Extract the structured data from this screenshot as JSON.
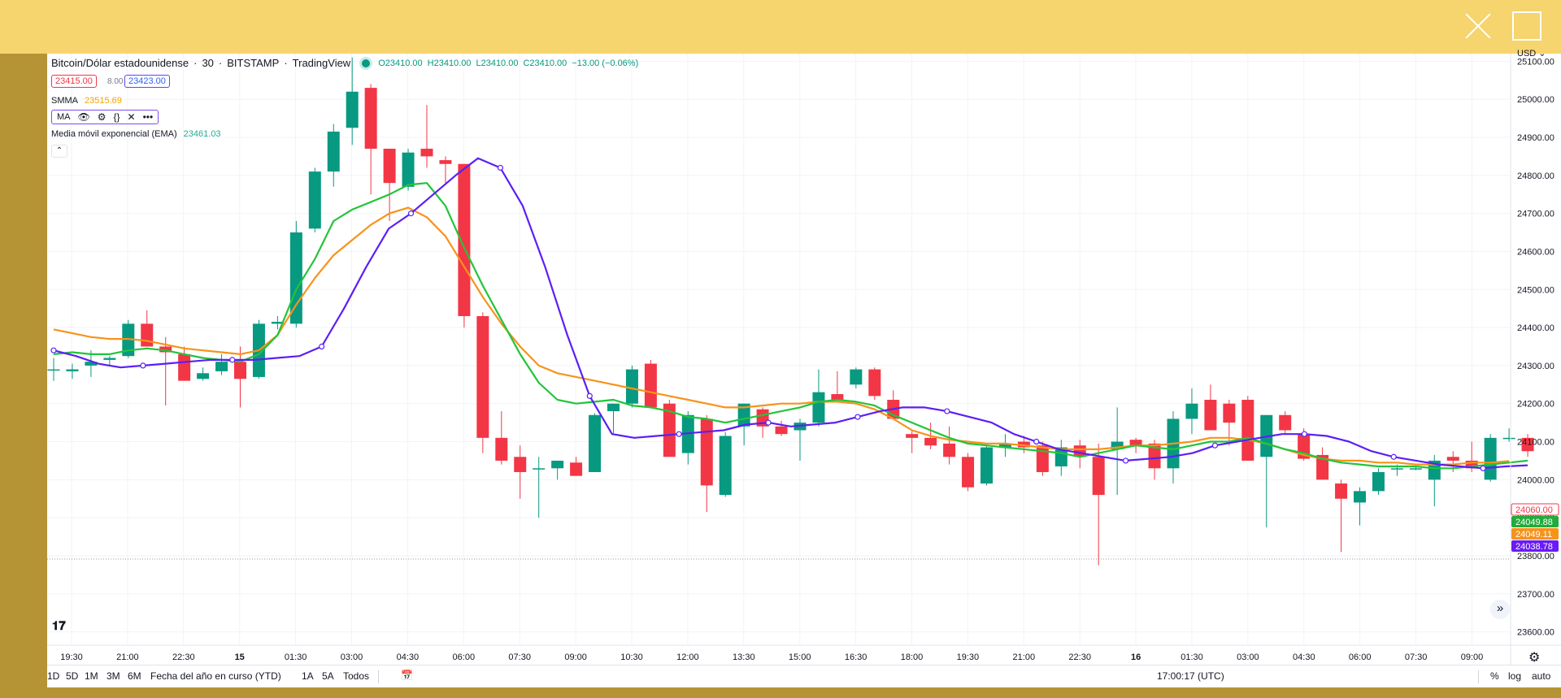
{
  "window": {
    "close_label": "close",
    "maximize_label": "maximize"
  },
  "header": {
    "symbol": "Bitcoin/Dólar estadounidense",
    "interval": "30",
    "exchange": "BITSTAMP",
    "source": "TradingView",
    "ohlc": {
      "o": "O23410.00",
      "h": "H23410.00",
      "l": "L23410.00",
      "c": "C23410.00",
      "chg": "−13.00 (−0.06%)"
    },
    "sell_price": "23415.00",
    "spread": "8.00",
    "buy_price": "23423.00"
  },
  "indicators": {
    "smma": {
      "label": "SMMA",
      "value": "23515.69"
    },
    "ma": {
      "label": "MA"
    },
    "ema": {
      "label": "Media móvil exponencial (EMA)",
      "value": "23461.03"
    }
  },
  "price_axis": {
    "currency": "USD",
    "ticks": [
      "25100.00",
      "25000.00",
      "24900.00",
      "24800.00",
      "24700.00",
      "24600.00",
      "24500.00",
      "24400.00",
      "24300.00",
      "24200.00",
      "24100.00",
      "24000.00",
      "23900.00",
      "23800.00",
      "23700.00",
      "23600.00"
    ],
    "tags": [
      {
        "text": "24060.00",
        "color": "#f23645",
        "outline": true,
        "price": 24060.0
      },
      {
        "text": "24049.88",
        "color": "#22ab3c",
        "outline": false,
        "price": 24049.88
      },
      {
        "text": "24049.11",
        "color": "#f7931a",
        "outline": false,
        "price": 24049.11
      },
      {
        "text": "24038.78",
        "color": "#6a1bf5",
        "outline": false,
        "price": 24038.78
      }
    ]
  },
  "time_axis": {
    "labels": [
      "19:30",
      "21:00",
      "22:30",
      "15",
      "01:30",
      "03:00",
      "04:30",
      "06:00",
      "07:30",
      "09:00",
      "10:30",
      "12:00",
      "13:30",
      "15:00",
      "16:30",
      "18:00",
      "19:30",
      "21:00",
      "22:30",
      "16",
      "01:30",
      "03:00",
      "04:30",
      "06:00",
      "07:30",
      "09:00"
    ]
  },
  "toolbar": {
    "ranges": [
      "1D",
      "5D",
      "1M",
      "3M",
      "6M",
      "Fecha del año en curso (YTD)",
      "1A",
      "5A",
      "Todos"
    ],
    "time": "17:00:17 (UTC)",
    "options": [
      "%",
      "log",
      "auto"
    ]
  },
  "colors": {
    "up": "#089981",
    "down": "#f23645",
    "ema": "#22c43a",
    "smma": "#f7931a",
    "ma": "#5b1ff5"
  },
  "icons": [
    "live-dot-icon",
    "eye-icon",
    "gear-icon",
    "braces-icon",
    "close-icon",
    "more-icon",
    "chevron-up-icon",
    "tradingview-logo-icon",
    "double-chevron-right-icon",
    "calendar-icon",
    "settings-icon"
  ],
  "chart_data": {
    "type": "candlestick",
    "ylim": [
      23565,
      25120
    ],
    "candles": [
      {
        "o": 24290,
        "h": 24320,
        "l": 24260,
        "c": 24290
      },
      {
        "o": 24285,
        "h": 24305,
        "l": 24265,
        "c": 24290
      },
      {
        "o": 24300,
        "h": 24340,
        "l": 24270,
        "c": 24310
      },
      {
        "o": 24315,
        "h": 24325,
        "l": 24300,
        "c": 24320
      },
      {
        "o": 24325,
        "h": 24420,
        "l": 24320,
        "c": 24410
      },
      {
        "o": 24410,
        "h": 24445,
        "l": 24350,
        "c": 24350
      },
      {
        "o": 24350,
        "h": 24375,
        "l": 24195,
        "c": 24335
      },
      {
        "o": 24330,
        "h": 24350,
        "l": 24260,
        "c": 24260
      },
      {
        "o": 24265,
        "h": 24295,
        "l": 24260,
        "c": 24280
      },
      {
        "o": 24285,
        "h": 24330,
        "l": 24275,
        "c": 24310
      },
      {
        "o": 24310,
        "h": 24350,
        "l": 24190,
        "c": 24265
      },
      {
        "o": 24270,
        "h": 24420,
        "l": 24265,
        "c": 24410
      },
      {
        "o": 24410,
        "h": 24430,
        "l": 24395,
        "c": 24415
      },
      {
        "o": 24410,
        "h": 24680,
        "l": 24400,
        "c": 24650
      },
      {
        "o": 24660,
        "h": 24820,
        "l": 24650,
        "c": 24810
      },
      {
        "o": 24810,
        "h": 24935,
        "l": 24770,
        "c": 24915
      },
      {
        "o": 24925,
        "h": 25110,
        "l": 24880,
        "c": 25020
      },
      {
        "o": 25030,
        "h": 25040,
        "l": 24750,
        "c": 24870
      },
      {
        "o": 24870,
        "h": 24870,
        "l": 24680,
        "c": 24780
      },
      {
        "o": 24770,
        "h": 24870,
        "l": 24760,
        "c": 24860
      },
      {
        "o": 24870,
        "h": 24985,
        "l": 24820,
        "c": 24850
      },
      {
        "o": 24840,
        "h": 24850,
        "l": 24780,
        "c": 24830
      },
      {
        "o": 24830,
        "h": 24830,
        "l": 24400,
        "c": 24430
      },
      {
        "o": 24430,
        "h": 24440,
        "l": 24070,
        "c": 24110
      },
      {
        "o": 24110,
        "h": 24180,
        "l": 24040,
        "c": 24050
      },
      {
        "o": 24060,
        "h": 24090,
        "l": 23950,
        "c": 24020
      },
      {
        "o": 24030,
        "h": 24060,
        "l": 23900,
        "c": 24030
      },
      {
        "o": 24030,
        "h": 24050,
        "l": 24000,
        "c": 24050
      },
      {
        "o": 24045,
        "h": 24060,
        "l": 24010,
        "c": 24010
      },
      {
        "o": 24020,
        "h": 24175,
        "l": 24020,
        "c": 24170
      },
      {
        "o": 24180,
        "h": 24200,
        "l": 24120,
        "c": 24200
      },
      {
        "o": 24200,
        "h": 24300,
        "l": 24190,
        "c": 24290
      },
      {
        "o": 24305,
        "h": 24315,
        "l": 24195,
        "c": 24190
      },
      {
        "o": 24200,
        "h": 24210,
        "l": 24060,
        "c": 24060
      },
      {
        "o": 24070,
        "h": 24180,
        "l": 24040,
        "c": 24170
      },
      {
        "o": 24160,
        "h": 24170,
        "l": 23915,
        "c": 23985
      },
      {
        "o": 23960,
        "h": 24125,
        "l": 23955,
        "c": 24115
      },
      {
        "o": 24140,
        "h": 24200,
        "l": 24090,
        "c": 24200
      },
      {
        "o": 24185,
        "h": 24190,
        "l": 24110,
        "c": 24140
      },
      {
        "o": 24140,
        "h": 24155,
        "l": 24115,
        "c": 24120
      },
      {
        "o": 24130,
        "h": 24160,
        "l": 24050,
        "c": 24150
      },
      {
        "o": 24150,
        "h": 24290,
        "l": 24140,
        "c": 24230
      },
      {
        "o": 24225,
        "h": 24285,
        "l": 24205,
        "c": 24210
      },
      {
        "o": 24250,
        "h": 24295,
        "l": 24240,
        "c": 24290
      },
      {
        "o": 24290,
        "h": 24295,
        "l": 24210,
        "c": 24220
      },
      {
        "o": 24210,
        "h": 24235,
        "l": 24160,
        "c": 24160
      },
      {
        "o": 24120,
        "h": 24130,
        "l": 24070,
        "c": 24110
      },
      {
        "o": 24110,
        "h": 24150,
        "l": 24080,
        "c": 24090
      },
      {
        "o": 24095,
        "h": 24140,
        "l": 24040,
        "c": 24060
      },
      {
        "o": 24060,
        "h": 24070,
        "l": 23970,
        "c": 23980
      },
      {
        "o": 23990,
        "h": 24090,
        "l": 23985,
        "c": 24085
      },
      {
        "o": 24085,
        "h": 24120,
        "l": 24060,
        "c": 24095
      },
      {
        "o": 24100,
        "h": 24115,
        "l": 24070,
        "c": 24085
      },
      {
        "o": 24090,
        "h": 24100,
        "l": 24010,
        "c": 24020
      },
      {
        "o": 24035,
        "h": 24105,
        "l": 24010,
        "c": 24085
      },
      {
        "o": 24090,
        "h": 24105,
        "l": 24030,
        "c": 24060
      },
      {
        "o": 24060,
        "h": 24095,
        "l": 23775,
        "c": 23960
      },
      {
        "o": 24080,
        "h": 24190,
        "l": 23960,
        "c": 24100
      },
      {
        "o": 24105,
        "h": 24110,
        "l": 24070,
        "c": 24090
      },
      {
        "o": 24095,
        "h": 24105,
        "l": 24000,
        "c": 24030
      },
      {
        "o": 24030,
        "h": 24180,
        "l": 23990,
        "c": 24160
      },
      {
        "o": 24160,
        "h": 24240,
        "l": 24120,
        "c": 24200
      },
      {
        "o": 24210,
        "h": 24250,
        "l": 24130,
        "c": 24130
      },
      {
        "o": 24200,
        "h": 24210,
        "l": 24090,
        "c": 24150
      },
      {
        "o": 24210,
        "h": 24220,
        "l": 24050,
        "c": 24050
      },
      {
        "o": 24060,
        "h": 24160,
        "l": 23875,
        "c": 24170
      },
      {
        "o": 24170,
        "h": 24180,
        "l": 24120,
        "c": 24130
      },
      {
        "o": 24120,
        "h": 24135,
        "l": 24050,
        "c": 24055
      },
      {
        "o": 24065,
        "h": 24085,
        "l": 24000,
        "c": 24000
      },
      {
        "o": 23990,
        "h": 24000,
        "l": 23810,
        "c": 23950
      },
      {
        "o": 23940,
        "h": 23980,
        "l": 23880,
        "c": 23970
      },
      {
        "o": 23970,
        "h": 24030,
        "l": 23960,
        "c": 24020
      },
      {
        "o": 24030,
        "h": 24040,
        "l": 24010,
        "c": 24030
      },
      {
        "o": 24030,
        "h": 24035,
        "l": 24025,
        "c": 24030
      },
      {
        "o": 24000,
        "h": 24065,
        "l": 23930,
        "c": 24050
      },
      {
        "o": 24060,
        "h": 24075,
        "l": 24020,
        "c": 24050
      },
      {
        "o": 24050,
        "h": 24100,
        "l": 24020,
        "c": 24030
      },
      {
        "o": 24000,
        "h": 24120,
        "l": 23995,
        "c": 24110
      },
      {
        "o": 24110,
        "h": 24135,
        "l": 24100,
        "c": 24110
      },
      {
        "o": 24110,
        "h": 24120,
        "l": 24060,
        "c": 24075
      }
    ],
    "ema": [
      24330,
      24335,
      24330,
      24330,
      24340,
      24345,
      24340,
      24330,
      24320,
      24315,
      24310,
      24330,
      24380,
      24500,
      24580,
      24680,
      24710,
      24730,
      24750,
      24775,
      24780,
      24720,
      24610,
      24510,
      24420,
      24330,
      24255,
      24210,
      24200,
      24205,
      24210,
      24195,
      24190,
      24180,
      24165,
      24160,
      24150,
      24160,
      24170,
      24180,
      24190,
      24205,
      24210,
      24205,
      24195,
      24170,
      24150,
      24130,
      24110,
      24095,
      24090,
      24085,
      24080,
      24075,
      24070,
      24060,
      24070,
      24080,
      24090,
      24085,
      24080,
      24090,
      24100,
      24100,
      24110,
      24095,
      24080,
      24070,
      24055,
      24045,
      24040,
      24035,
      24035,
      24035,
      24030,
      24030,
      24035,
      24040,
      24045,
      24050
    ],
    "smma": [
      24395,
      24385,
      24375,
      24370,
      24370,
      24365,
      24355,
      24345,
      24340,
      24335,
      24330,
      24340,
      24380,
      24460,
      24530,
      24590,
      24630,
      24670,
      24700,
      24715,
      24690,
      24640,
      24560,
      24480,
      24410,
      24350,
      24300,
      24280,
      24270,
      24260,
      24250,
      24240,
      24230,
      24220,
      24210,
      24200,
      24190,
      24190,
      24195,
      24200,
      24200,
      24205,
      24205,
      24200,
      24185,
      24160,
      24130,
      24115,
      24105,
      24100,
      24095,
      24095,
      24090,
      24085,
      24080,
      24080,
      24080,
      24085,
      24090,
      24090,
      24095,
      24100,
      24110,
      24110,
      24105,
      24095,
      24080,
      24065,
      24055,
      24050,
      24050,
      24045,
      24045,
      24040,
      24040,
      24040,
      24045,
      24045,
      24049
    ],
    "ma": [
      24340,
      24325,
      24305,
      24295,
      24300,
      24305,
      24310,
      24315,
      24315,
      24315,
      24320,
      24325,
      24350,
      24450,
      24560,
      24660,
      24700,
      24750,
      24800,
      24845,
      24820,
      24720,
      24560,
      24380,
      24220,
      24120,
      24110,
      24115,
      24120,
      24125,
      24130,
      24145,
      24150,
      24140,
      24145,
      24150,
      24165,
      24180,
      24190,
      24190,
      24180,
      24165,
      24150,
      24120,
      24100,
      24080,
      24070,
      24060,
      24050,
      24055,
      24060,
      24070,
      24090,
      24100,
      24110,
      24120,
      24120,
      24115,
      24100,
      24075,
      24060,
      24050,
      24040,
      24035,
      24030,
      24035,
      24038
    ]
  }
}
